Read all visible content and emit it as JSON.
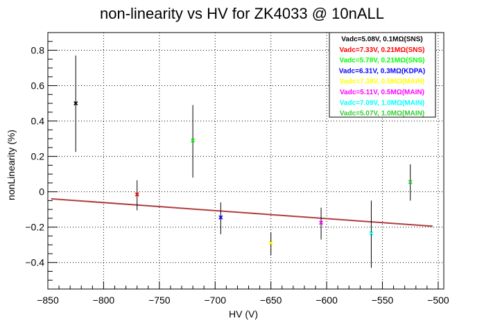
{
  "chart_data": {
    "type": "scatter",
    "title": "non-linearity vs HV for ZK4033 @ 10nALL",
    "xlabel": "HV (V)",
    "ylabel": "nonLinearity (%)",
    "xlim": [
      -850,
      -495
    ],
    "ylim": [
      -0.55,
      0.9
    ],
    "xticks": [
      -850,
      -800,
      -750,
      -700,
      -650,
      -600,
      -550,
      -500
    ],
    "xtick_labels": [
      "−850",
      "−800",
      "−750",
      "−700",
      "−650",
      "−600",
      "−550",
      "−500"
    ],
    "yticks": [
      -0.4,
      -0.2,
      0,
      0.2,
      0.4,
      0.6,
      0.8
    ],
    "ytick_labels": [
      "−0.4",
      "−0.2",
      "0",
      "0.2",
      "0.4",
      "0.6",
      "0.8"
    ],
    "grid": true,
    "legend_position": "top-right",
    "series": [
      {
        "name": "Vadc=5.08V, 0.1MΩ(SNS)",
        "color": "#000000",
        "x": -825,
        "y": 0.5,
        "yerr_low": 0.225,
        "yerr_high": 0.77
      },
      {
        "name": "Vadc=7.33V, 0.21MΩ(SNS)",
        "color": "#ff0000",
        "x": -770,
        "y": -0.015,
        "yerr_low": -0.105,
        "yerr_high": 0.065
      },
      {
        "name": "Vadc=5.78V, 0.21MΩ(SNS)",
        "color": "#00ff00",
        "x": -720,
        "y": 0.29,
        "yerr_low": 0.08,
        "yerr_high": 0.49
      },
      {
        "name": "Vadc=6.31V, 0.3MΩ(KDPA)",
        "color": "#0000ff",
        "x": -695,
        "y": -0.145,
        "yerr_low": -0.24,
        "yerr_high": -0.06
      },
      {
        "name": "Vadc=7.38V, 0.5MΩ(MAIN)",
        "color": "#ffff00",
        "x": -650,
        "y": -0.29,
        "yerr_low": -0.36,
        "yerr_high": -0.23
      },
      {
        "name": "Vadc=5.11V, 0.5MΩ(MAIN)",
        "color": "#ff00ff",
        "x": -605,
        "y": -0.175,
        "yerr_low": -0.27,
        "yerr_high": -0.09
      },
      {
        "name": "Vadc=7.09V, 1.0MΩ(MAIN)",
        "color": "#00ffff",
        "x": -560,
        "y": -0.235,
        "yerr_low": -0.43,
        "yerr_high": -0.05
      },
      {
        "name": "Vadc=5.07V, 1.0MΩ(MAIN)",
        "color": "#33cc33",
        "x": -525,
        "y": 0.055,
        "yerr_low": -0.05,
        "yerr_high": 0.155
      }
    ],
    "fit_line": {
      "color": "#b03c3c",
      "x": [
        -847,
        -505
      ],
      "y": [
        -0.04,
        -0.195
      ]
    }
  }
}
